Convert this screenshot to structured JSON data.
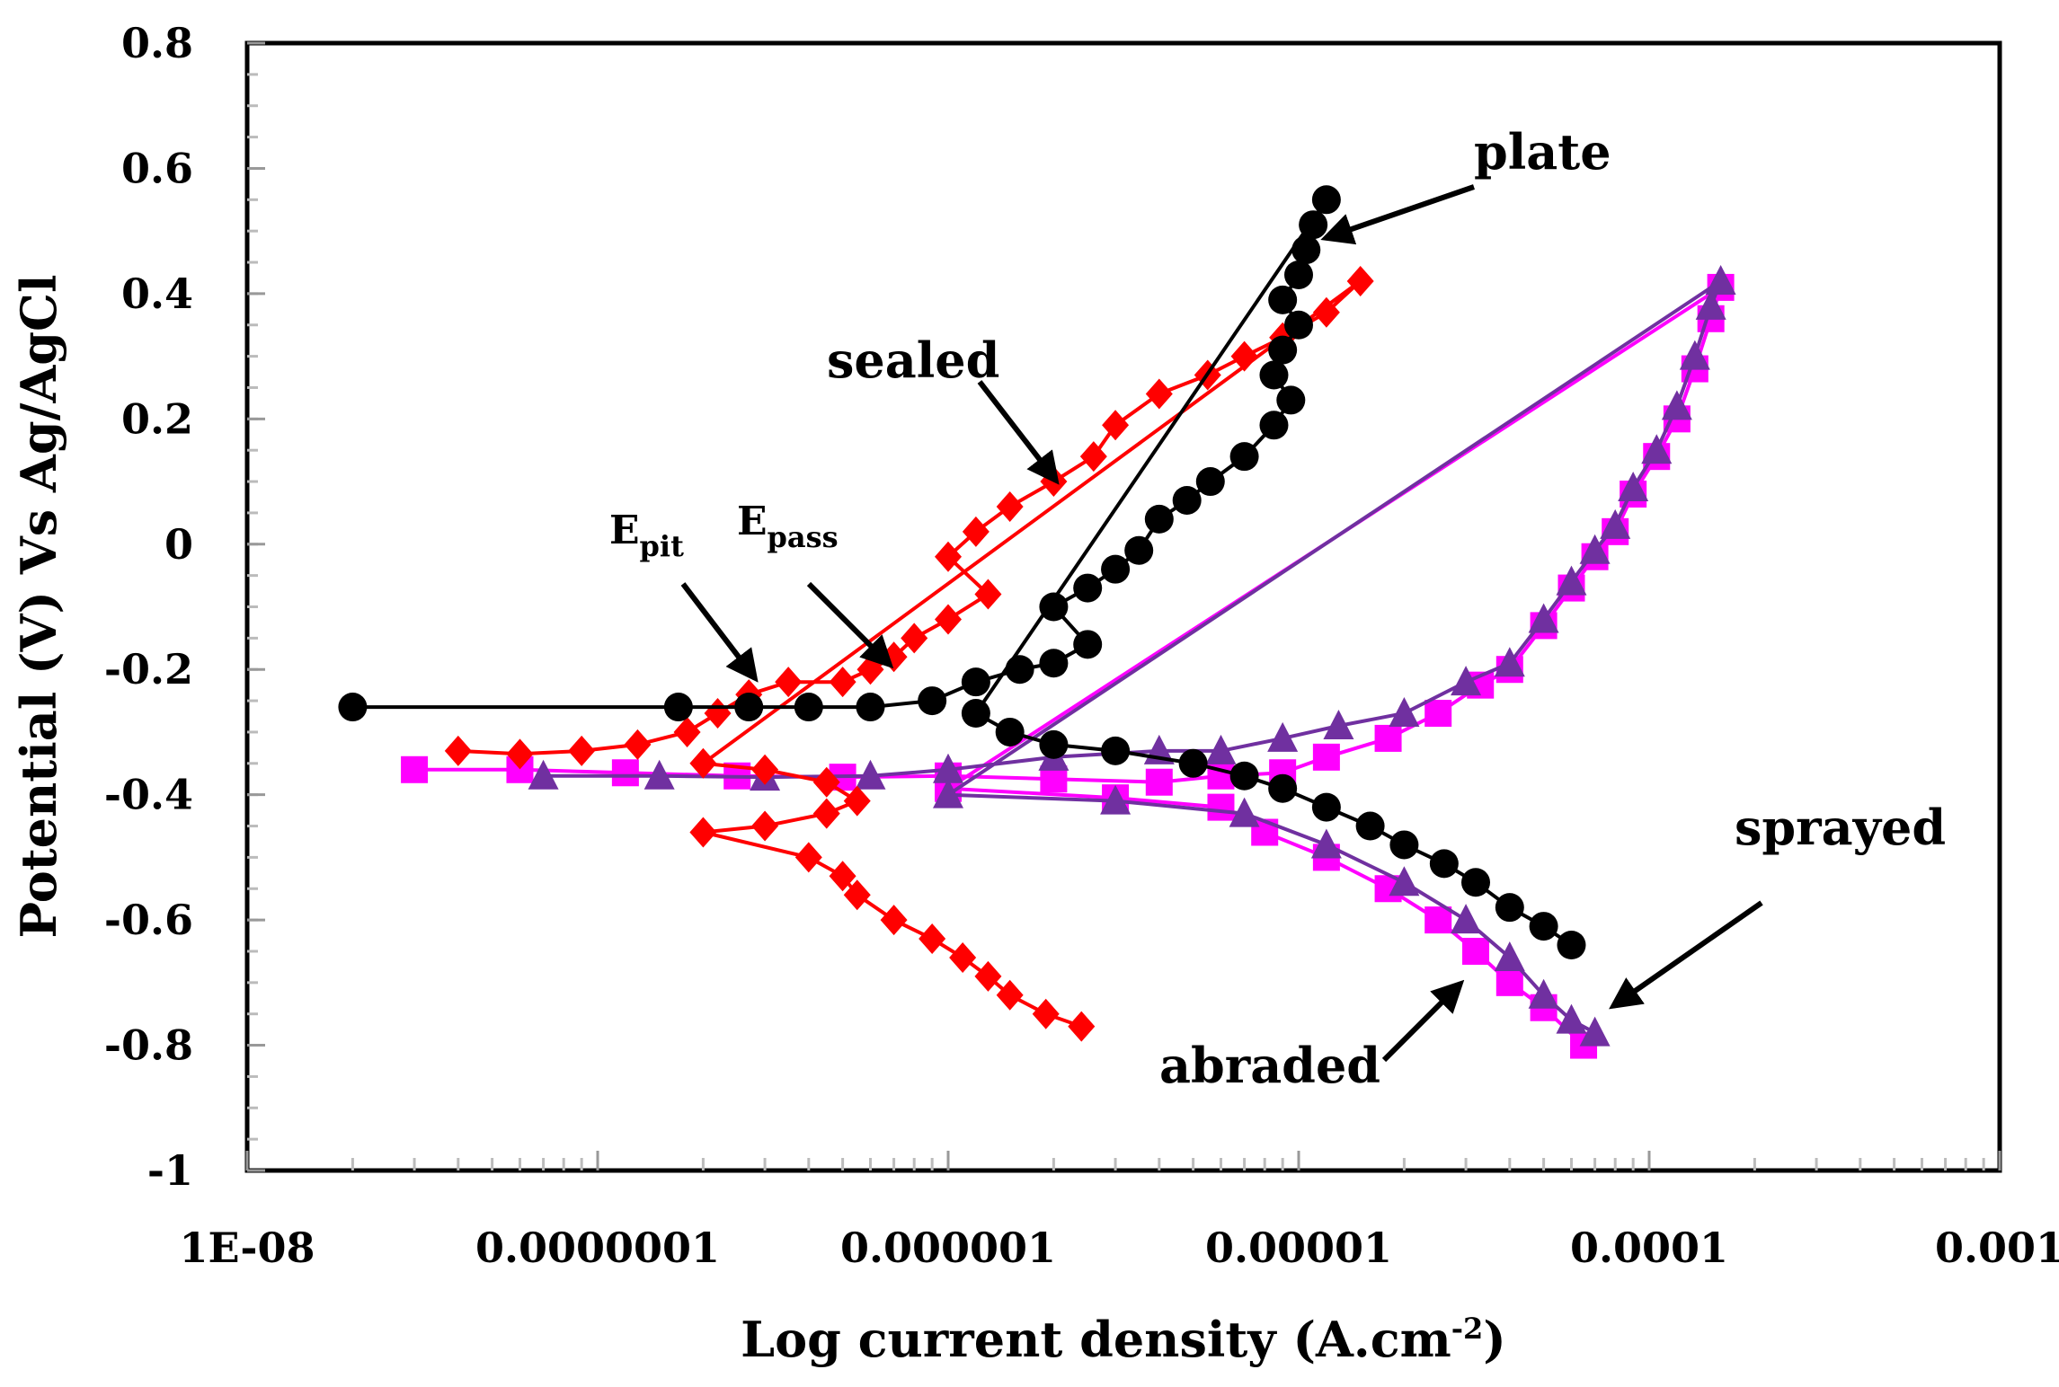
{
  "chart_data": {
    "type": "scatter",
    "xscale": "log",
    "xlabel": "Log current density (A.cm",
    "xlabel_sup": "-2",
    "xlabel_close": ")",
    "ylabel": "Potential (V) Vs Ag/AgCl",
    "xlim": [
      1e-08,
      0.001
    ],
    "ylim": [
      -1,
      0.8
    ],
    "xticks": [
      {
        "value": 1e-08,
        "label": "1E-08"
      },
      {
        "value": 1e-07,
        "label": "0.0000001"
      },
      {
        "value": 1e-06,
        "label": "0.000001"
      },
      {
        "value": 1e-05,
        "label": "0.00001"
      },
      {
        "value": 0.0001,
        "label": "0.0001"
      },
      {
        "value": 0.001,
        "label": "0.001"
      }
    ],
    "yticks": [
      {
        "value": 0.8,
        "label": "0.8"
      },
      {
        "value": 0.6,
        "label": "0.6"
      },
      {
        "value": 0.4,
        "label": "0.4"
      },
      {
        "value": 0.2,
        "label": "0.2"
      },
      {
        "value": 0,
        "label": "0"
      },
      {
        "value": -0.2,
        "label": "-0.2"
      },
      {
        "value": -0.4,
        "label": "-0.4"
      },
      {
        "value": -0.6,
        "label": "-0.6"
      },
      {
        "value": -0.8,
        "label": "-0.8"
      },
      {
        "value": -1,
        "label": "-1"
      }
    ],
    "series": [
      {
        "name": "abraded",
        "color": "#ff00ff",
        "marker": "square",
        "points": [
          [
            3e-08,
            -0.36
          ],
          [
            6e-08,
            -0.36
          ],
          [
            1.2e-07,
            -0.365
          ],
          [
            2.5e-07,
            -0.37
          ],
          [
            5e-07,
            -0.372
          ],
          [
            1e-06,
            -0.37
          ],
          [
            2e-06,
            -0.375
          ],
          [
            4e-06,
            -0.38
          ],
          [
            6e-06,
            -0.37
          ],
          [
            9e-06,
            -0.365
          ],
          [
            1.2e-05,
            -0.34
          ],
          [
            1.8e-05,
            -0.31
          ],
          [
            2.5e-05,
            -0.27
          ],
          [
            3.3e-05,
            -0.225
          ],
          [
            4e-05,
            -0.2
          ],
          [
            5e-05,
            -0.13
          ],
          [
            6e-05,
            -0.07
          ],
          [
            7e-05,
            -0.02
          ],
          [
            8e-05,
            0.02
          ],
          [
            9e-05,
            0.08
          ],
          [
            0.000105,
            0.14
          ],
          [
            0.00012,
            0.2
          ],
          [
            0.000135,
            0.28
          ],
          [
            0.00015,
            0.36
          ],
          [
            0.00016,
            0.41
          ],
          [
            1e-06,
            -0.39
          ],
          [
            3e-06,
            -0.405
          ],
          [
            6e-06,
            -0.42
          ],
          [
            8e-06,
            -0.46
          ],
          [
            1.2e-05,
            -0.5
          ],
          [
            1.8e-05,
            -0.55
          ],
          [
            2.5e-05,
            -0.6
          ],
          [
            3.2e-05,
            -0.65
          ],
          [
            4e-05,
            -0.7
          ],
          [
            5e-05,
            -0.74
          ],
          [
            6.5e-05,
            -0.8
          ]
        ]
      },
      {
        "name": "sprayed",
        "color": "#7030a0",
        "marker": "triangle",
        "points": [
          [
            7e-08,
            -0.37
          ],
          [
            1.5e-07,
            -0.37
          ],
          [
            3e-07,
            -0.372
          ],
          [
            6e-07,
            -0.37
          ],
          [
            1e-06,
            -0.36
          ],
          [
            2e-06,
            -0.34
          ],
          [
            4e-06,
            -0.33
          ],
          [
            6e-06,
            -0.33
          ],
          [
            9e-06,
            -0.31
          ],
          [
            1.3e-05,
            -0.29
          ],
          [
            2e-05,
            -0.27
          ],
          [
            3e-05,
            -0.22
          ],
          [
            4e-05,
            -0.19
          ],
          [
            5e-05,
            -0.12
          ],
          [
            6e-05,
            -0.06
          ],
          [
            7e-05,
            -0.01
          ],
          [
            8e-05,
            0.03
          ],
          [
            9e-05,
            0.09
          ],
          [
            0.000105,
            0.15
          ],
          [
            0.00012,
            0.22
          ],
          [
            0.000135,
            0.3
          ],
          [
            0.00015,
            0.38
          ],
          [
            0.00016,
            0.42
          ],
          [
            1e-06,
            -0.4
          ],
          [
            3e-06,
            -0.41
          ],
          [
            7e-06,
            -0.43
          ],
          [
            1.2e-05,
            -0.48
          ],
          [
            2e-05,
            -0.54
          ],
          [
            3e-05,
            -0.6
          ],
          [
            4e-05,
            -0.66
          ],
          [
            5e-05,
            -0.72
          ],
          [
            6e-05,
            -0.76
          ],
          [
            7e-05,
            -0.78
          ]
        ]
      },
      {
        "name": "sealed",
        "color": "#ff0000",
        "marker": "diamond",
        "points": [
          [
            4e-08,
            -0.33
          ],
          [
            6e-08,
            -0.335
          ],
          [
            9e-08,
            -0.33
          ],
          [
            1.3e-07,
            -0.32
          ],
          [
            1.8e-07,
            -0.3
          ],
          [
            2.2e-07,
            -0.27
          ],
          [
            2.7e-07,
            -0.24
          ],
          [
            3.5e-07,
            -0.22
          ],
          [
            5e-07,
            -0.22
          ],
          [
            6e-07,
            -0.2
          ],
          [
            7e-07,
            -0.18
          ],
          [
            8e-07,
            -0.15
          ],
          [
            1e-06,
            -0.12
          ],
          [
            1.3e-06,
            -0.08
          ],
          [
            1e-06,
            -0.02
          ],
          [
            1.2e-06,
            0.02
          ],
          [
            1.5e-06,
            0.06
          ],
          [
            2e-06,
            0.1
          ],
          [
            2.6e-06,
            0.14
          ],
          [
            3e-06,
            0.19
          ],
          [
            4e-06,
            0.24
          ],
          [
            5.5e-06,
            0.27
          ],
          [
            7e-06,
            0.3
          ],
          [
            9e-06,
            0.33
          ],
          [
            1.2e-05,
            0.37
          ],
          [
            1.5e-05,
            0.42
          ],
          [
            2e-07,
            -0.35
          ],
          [
            3e-07,
            -0.36
          ],
          [
            4.5e-07,
            -0.38
          ],
          [
            5.5e-07,
            -0.41
          ],
          [
            4.5e-07,
            -0.43
          ],
          [
            3e-07,
            -0.45
          ],
          [
            2e-07,
            -0.46
          ],
          [
            4e-07,
            -0.5
          ],
          [
            5e-07,
            -0.53
          ],
          [
            5.5e-07,
            -0.56
          ],
          [
            7e-07,
            -0.6
          ],
          [
            9e-07,
            -0.63
          ],
          [
            1.1e-06,
            -0.66
          ],
          [
            1.3e-06,
            -0.69
          ],
          [
            1.5e-06,
            -0.72
          ],
          [
            1.9e-06,
            -0.75
          ],
          [
            2.4e-06,
            -0.77
          ]
        ]
      },
      {
        "name": "plate",
        "color": "#000000",
        "marker": "circle",
        "points": [
          [
            2e-08,
            -0.26
          ],
          [
            1.7e-07,
            -0.26
          ],
          [
            2.7e-07,
            -0.26
          ],
          [
            4e-07,
            -0.26
          ],
          [
            6e-07,
            -0.26
          ],
          [
            9e-07,
            -0.25
          ],
          [
            1.2e-06,
            -0.22
          ],
          [
            1.6e-06,
            -0.2
          ],
          [
            2e-06,
            -0.19
          ],
          [
            2.5e-06,
            -0.16
          ],
          [
            2e-06,
            -0.1
          ],
          [
            2.5e-06,
            -0.07
          ],
          [
            3e-06,
            -0.04
          ],
          [
            3.5e-06,
            -0.01
          ],
          [
            4e-06,
            0.04
          ],
          [
            4.8e-06,
            0.07
          ],
          [
            5.6e-06,
            0.1
          ],
          [
            7e-06,
            0.14
          ],
          [
            8.5e-06,
            0.19
          ],
          [
            9.5e-06,
            0.23
          ],
          [
            8.5e-06,
            0.27
          ],
          [
            9e-06,
            0.31
          ],
          [
            1e-05,
            0.35
          ],
          [
            9e-06,
            0.39
          ],
          [
            1e-05,
            0.43
          ],
          [
            1.05e-05,
            0.47
          ],
          [
            1.1e-05,
            0.51
          ],
          [
            1.2e-05,
            0.55
          ],
          [
            1.2e-06,
            -0.27
          ],
          [
            1.5e-06,
            -0.3
          ],
          [
            2e-06,
            -0.32
          ],
          [
            3e-06,
            -0.33
          ],
          [
            5e-06,
            -0.35
          ],
          [
            7e-06,
            -0.37
          ],
          [
            9e-06,
            -0.39
          ],
          [
            1.2e-05,
            -0.42
          ],
          [
            1.6e-05,
            -0.45
          ],
          [
            2e-05,
            -0.48
          ],
          [
            2.6e-05,
            -0.51
          ],
          [
            3.2e-05,
            -0.54
          ],
          [
            4e-05,
            -0.58
          ],
          [
            5e-05,
            -0.61
          ],
          [
            6e-05,
            -0.64
          ]
        ]
      }
    ],
    "annotations": [
      {
        "text": "plate"
      },
      {
        "text": "sealed"
      },
      {
        "text": "sprayed"
      },
      {
        "text": "abraded"
      },
      {
        "text": "E",
        "sub": "pit"
      },
      {
        "text": "E",
        "sub": "pass"
      }
    ]
  }
}
